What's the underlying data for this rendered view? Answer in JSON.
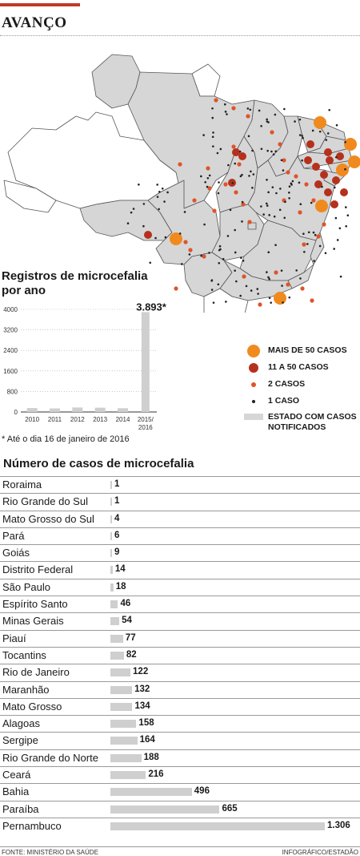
{
  "headline": "AVANÇO",
  "map": {
    "legend": [
      {
        "icon": "large-orange-circle",
        "color": "#f08a1e",
        "label": "MAIS DE 50 CASOS"
      },
      {
        "icon": "medium-red-circle",
        "color": "#b5311d",
        "label": "11 A 50 CASOS"
      },
      {
        "icon": "small-orange-dot",
        "color": "#e0532a",
        "label": "2 CASOS"
      },
      {
        "icon": "tiny-black-dot",
        "color": "#222222",
        "label": "1 CASO"
      },
      {
        "icon": "gray-box",
        "color": "#d6d6d6",
        "label": "ESTADO COM CASOS NOTIFICADOS"
      }
    ]
  },
  "bar_chart": {
    "title": "Registros de microcefalia por ano",
    "highlight_label": "3.893*",
    "footnote": "* Até o dia 16 de janeiro de 2016"
  },
  "table": {
    "title": "Número de casos de microcefalia",
    "rows": [
      {
        "state": "Roraima",
        "cases": 1,
        "label": "1"
      },
      {
        "state": "Rio Grande do Sul",
        "cases": 1,
        "label": "1"
      },
      {
        "state": "Mato Grosso do Sul",
        "cases": 4,
        "label": "4"
      },
      {
        "state": "Pará",
        "cases": 6,
        "label": "6"
      },
      {
        "state": "Goiás",
        "cases": 9,
        "label": "9"
      },
      {
        "state": "Distrito Federal",
        "cases": 14,
        "label": "14"
      },
      {
        "state": "São Paulo",
        "cases": 18,
        "label": "18"
      },
      {
        "state": "Espírito Santo",
        "cases": 46,
        "label": "46"
      },
      {
        "state": "Minas Gerais",
        "cases": 54,
        "label": "54"
      },
      {
        "state": "Piauí",
        "cases": 77,
        "label": "77"
      },
      {
        "state": "Tocantins",
        "cases": 82,
        "label": "82"
      },
      {
        "state": "Rio de Janeiro",
        "cases": 122,
        "label": "122"
      },
      {
        "state": "Maranhão",
        "cases": 132,
        "label": "132"
      },
      {
        "state": "Mato Grosso",
        "cases": 134,
        "label": "134"
      },
      {
        "state": "Alagoas",
        "cases": 158,
        "label": "158"
      },
      {
        "state": "Sergipe",
        "cases": 164,
        "label": "164"
      },
      {
        "state": "Rio Grande do Norte",
        "cases": 188,
        "label": "188"
      },
      {
        "state": "Ceará",
        "cases": 216,
        "label": "216"
      },
      {
        "state": "Bahia",
        "cases": 496,
        "label": "496"
      },
      {
        "state": "Paraíba",
        "cases": 665,
        "label": "665"
      },
      {
        "state": "Pernambuco",
        "cases": 1306,
        "label": "1.306"
      }
    ]
  },
  "footer": {
    "source": "FONTE: MINISTÉRIO DA SAÚDE",
    "credit": "INFOGRÁFICO/ESTADÃO"
  },
  "chart_data": [
    {
      "type": "bar",
      "title": "Registros de microcefalia por ano",
      "categories": [
        "2010",
        "2011",
        "2012",
        "2013",
        "2014",
        "2015/2016"
      ],
      "values": [
        153,
        139,
        175,
        167,
        147,
        3893
      ],
      "yticks": [
        "0",
        "800",
        "1600",
        "2400",
        "3200",
        "4000"
      ],
      "ylim": [
        0,
        4000
      ],
      "data_labels": [
        {
          "category": "2015/2016",
          "text": "3.893*"
        }
      ],
      "grid": true,
      "color": "#cfcfcf"
    },
    {
      "type": "bar",
      "orientation": "horizontal",
      "title": "Número de casos de microcefalia",
      "categories": [
        "Roraima",
        "Rio Grande do Sul",
        "Mato Grosso do Sul",
        "Pará",
        "Goiás",
        "Distrito Federal",
        "São Paulo",
        "Espírito Santo",
        "Minas Gerais",
        "Piauí",
        "Tocantins",
        "Rio de Janeiro",
        "Maranhão",
        "Mato Grosso",
        "Alagoas",
        "Sergipe",
        "Rio Grande do Norte",
        "Ceará",
        "Bahia",
        "Paraíba",
        "Pernambuco"
      ],
      "values": [
        1,
        1,
        4,
        6,
        9,
        14,
        18,
        46,
        54,
        77,
        82,
        122,
        132,
        134,
        158,
        164,
        188,
        216,
        496,
        665,
        1306
      ],
      "color": "#cfcfcf"
    }
  ]
}
